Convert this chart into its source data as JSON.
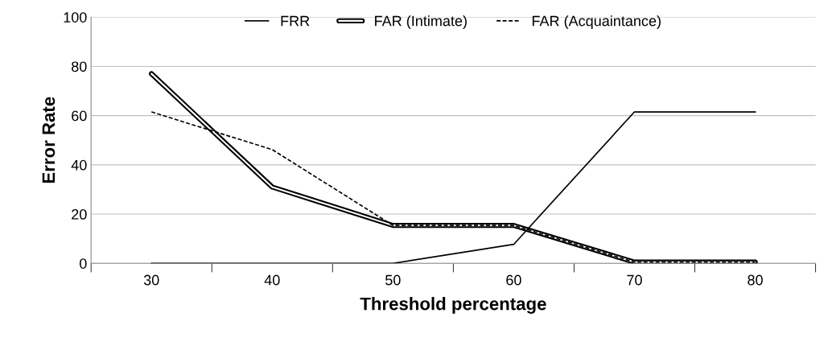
{
  "chart_data": {
    "type": "line",
    "xlabel": "Threshold percentage",
    "ylabel": "Error Rate",
    "categories": [
      "30",
      "40",
      "50",
      "60",
      "70",
      "80"
    ],
    "series": [
      {
        "name": "FRR",
        "color": "#000000",
        "line_style": "solid",
        "values": [
          0,
          0,
          0,
          7.7,
          61.5,
          61.5
        ]
      },
      {
        "name": "FAR (Intimate)",
        "color": "#000000",
        "line_style": "solid",
        "values": [
          77,
          31,
          15.4,
          15.4,
          0.5,
          0.5
        ]
      },
      {
        "name": "FAR (Acquaintance)",
        "color": "#000000",
        "line_style": "dashed",
        "values": [
          61.5,
          46.2,
          15.4,
          15.4,
          0.5,
          0.5
        ]
      }
    ],
    "ylim": [
      0,
      100
    ],
    "yticks": [
      0,
      20,
      40,
      60,
      80,
      100
    ],
    "grid": "y",
    "legend": "top",
    "marker": "none"
  }
}
